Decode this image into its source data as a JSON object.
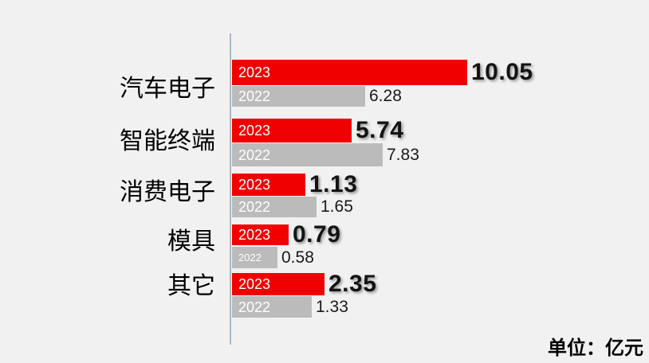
{
  "chart_data": {
    "type": "bar",
    "orientation": "horizontal",
    "title": "",
    "unit_label": "单位：亿元",
    "categories": [
      "汽车电子",
      "智能终端",
      "消费电子",
      "模具",
      "其它"
    ],
    "series": [
      {
        "name": "2023",
        "color": "#f10000",
        "values": [
          10.05,
          5.74,
          1.13,
          0.79,
          2.35
        ],
        "value_labels": [
          "10.05",
          "5.74",
          "1.13",
          "0.79",
          "2.35"
        ],
        "value_style": "bold"
      },
      {
        "name": "2022",
        "color": "#bbbbbb",
        "values": [
          6.28,
          7.83,
          1.65,
          0.58,
          1.33
        ],
        "value_labels": [
          "6.28",
          "7.83",
          "1.65",
          "0.58",
          "1.33"
        ],
        "value_style": "normal"
      }
    ],
    "legend_position": "inside-bars",
    "grid": false,
    "axis_line_color": "#b2b8c4",
    "background_color": "#f1f1f1",
    "bar_label_text_color": "#ffffff",
    "value_text_color": "#141414"
  }
}
